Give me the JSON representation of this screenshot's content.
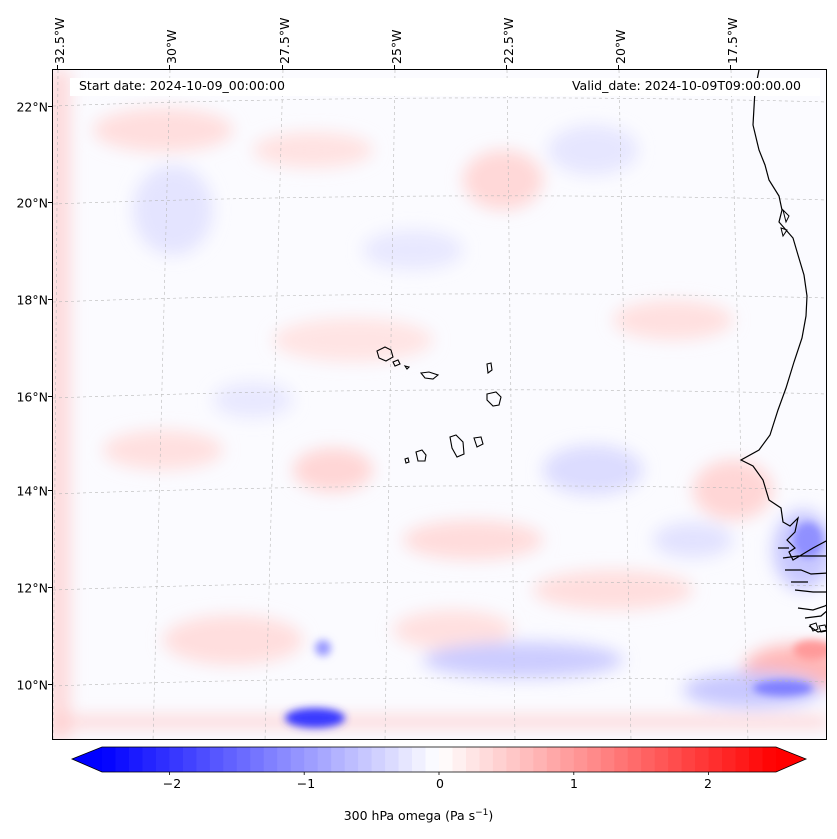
{
  "map": {
    "start_date": "Start date: 2024-10-09_00:00:00",
    "valid_date": "Valid_date: 2024-10-09T09:00:00.00",
    "longitude_labels": [
      "32.5°W",
      "30°W",
      "27.5°W",
      "25°W",
      "22.5°W",
      "20°W",
      "17.5°W"
    ],
    "latitude_labels": [
      "22°N",
      "20°N",
      "18°N",
      "16°N",
      "14°N",
      "12°N",
      "10°N"
    ],
    "extent": {
      "lon_min": -32.9,
      "lon_max": -15.6,
      "lat_min": 8.9,
      "lat_max": 22.8
    },
    "features": [
      "Cape Verde islands",
      "West African coastline (Mauritania, Senegal, Gambia, Guinea-Bissau)"
    ]
  },
  "colorbar": {
    "ticks": [
      "−2",
      "−1",
      "0",
      "1",
      "2"
    ],
    "tick_values": [
      -2,
      -1,
      0,
      1,
      2
    ],
    "range": [
      -2.5,
      2.5
    ],
    "label_main": "300 hPa omega (Pa s",
    "label_exp": "−1",
    "label_end": ")",
    "cmap": "bwr",
    "neg_color": "#0000ff",
    "mid_color": "#ffffff",
    "pos_color": "#ff0000"
  }
}
